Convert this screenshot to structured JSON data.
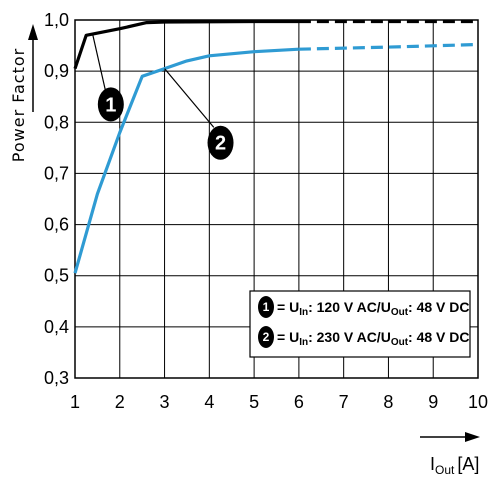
{
  "chart_data": {
    "type": "line",
    "xlabel_main": "I",
    "xlabel_sub": "Out",
    "xlabel_unit": "[A]",
    "ylabel": "Power Factor",
    "x_ticks": [
      "1",
      "2",
      "3",
      "4",
      "5",
      "6",
      "7",
      "8",
      "9",
      "10"
    ],
    "y_ticks": [
      "0,3",
      "0,4",
      "0,5",
      "0,6",
      "0,7",
      "0,8",
      "0,9",
      "1,0"
    ],
    "xlim": [
      1,
      10
    ],
    "ylim": [
      0.3,
      1.0
    ],
    "grid": true,
    "series": [
      {
        "name": "1",
        "color": "#000000",
        "points": [
          [
            1,
            0.905
          ],
          [
            1.25,
            0.97
          ],
          [
            2,
            0.983
          ],
          [
            2.6,
            0.995
          ],
          [
            3,
            0.996
          ],
          [
            5,
            0.997
          ],
          [
            6,
            0.997
          ]
        ],
        "dashed_points": [
          [
            6,
            0.997
          ],
          [
            10,
            0.997
          ]
        ]
      },
      {
        "name": "2",
        "color": "#2f9bd3",
        "points": [
          [
            1,
            0.505
          ],
          [
            1.5,
            0.66
          ],
          [
            2,
            0.78
          ],
          [
            2.5,
            0.89
          ],
          [
            3,
            0.905
          ],
          [
            3.5,
            0.92
          ],
          [
            4,
            0.93
          ],
          [
            5,
            0.938
          ],
          [
            6,
            0.943
          ]
        ],
        "dashed_points": [
          [
            6,
            0.943
          ],
          [
            8,
            0.947
          ],
          [
            10,
            0.952
          ]
        ]
      }
    ],
    "legend": [
      {
        "badge": "1",
        "eq": "= U",
        "sub_in": "In",
        "mid": ": 120 V AC/U",
        "sub_out": "Out",
        "tail": ": 48 V DC"
      },
      {
        "badge": "2",
        "eq": "= U",
        "sub_in": "In",
        "mid": ": 230 V AC/U",
        "sub_out": "Out",
        "tail": ": 48 V DC"
      }
    ],
    "callouts": [
      "1",
      "2"
    ]
  }
}
